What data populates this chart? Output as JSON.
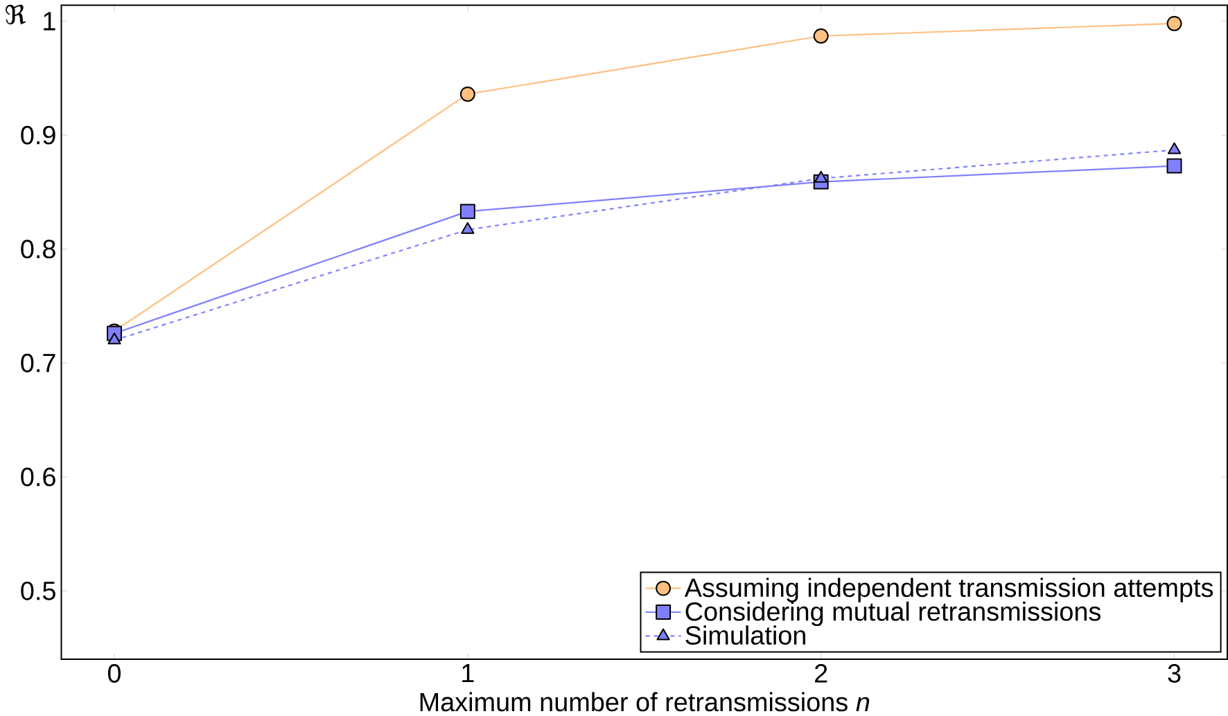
{
  "chart_data": {
    "type": "line",
    "xlabel": "Maximum number of retransmissions *n*",
    "ylabel": "ℜ",
    "x": [
      0,
      1,
      2,
      3
    ],
    "xlim": [
      -0.15,
      3.15
    ],
    "ylim": [
      0.44,
      1.014
    ],
    "xticks": [
      0,
      1,
      2,
      3
    ],
    "yticks": [
      0.5,
      0.6,
      0.7,
      0.8,
      0.9,
      1
    ],
    "legend": "bottom right",
    "series": [
      {
        "name": "Assuming independent transmission attempts",
        "color": "#ffbf80",
        "marker": "circle",
        "line_style": "solid",
        "values": [
          0.728,
          0.936,
          0.987,
          0.998
        ]
      },
      {
        "name": "Considering mutual retransmissions",
        "color": "#8080ff",
        "marker": "square",
        "line_style": "solid",
        "values": [
          0.726,
          0.833,
          0.859,
          0.873
        ]
      },
      {
        "name": "Simulation",
        "color": "#8080ff",
        "marker": "triangle",
        "line_style": "dashed",
        "values": [
          0.72,
          0.817,
          0.862,
          0.887
        ]
      }
    ]
  }
}
